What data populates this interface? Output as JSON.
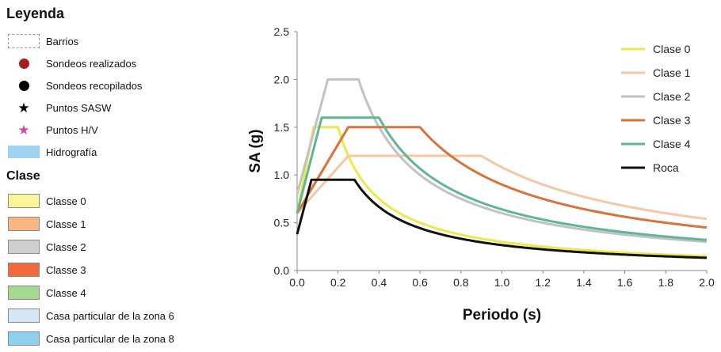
{
  "legend": {
    "title": "Leyenda",
    "items": [
      {
        "label": "Barrios",
        "symbol": "dashed-box-icon"
      },
      {
        "label": "Sondeos realizados",
        "symbol": "dot-icon",
        "color": "#a51c23"
      },
      {
        "label": "Sondeos recopilados",
        "symbol": "dot-icon",
        "color": "#000000"
      },
      {
        "label": "Puntos SASW",
        "symbol": "star-icon",
        "color": "#000000"
      },
      {
        "label": "Puntos H/V",
        "symbol": "star-icon",
        "color": "#d048b0"
      },
      {
        "label": "Hidrografía",
        "symbol": "hydro-icon",
        "color": "#9fd4ef"
      }
    ],
    "clase_title": "Clase",
    "clases": [
      {
        "label": "Classe 0",
        "color": "#fbf49a"
      },
      {
        "label": "Classe 1",
        "color": "#f9b680"
      },
      {
        "label": "Classe 2",
        "color": "#cfcfcf"
      },
      {
        "label": "Classe 3",
        "color": "#f26a3c"
      },
      {
        "label": "Classe 4",
        "color": "#a6d990"
      },
      {
        "label": "Casa particular de la zona 6",
        "color": "#d6e8f6"
      },
      {
        "label": "Casa particular de la zona 8",
        "color": "#8ed0f0"
      }
    ]
  },
  "chart_data": {
    "type": "line",
    "xlabel": "Periodo (s)",
    "ylabel": "SA (g)",
    "xlim": [
      0,
      2.0
    ],
    "ylim": [
      0,
      2.5
    ],
    "xticks": [
      "0.0",
      "0.2",
      "0.4",
      "0.6",
      "0.8",
      "1.0",
      "1.2",
      "1.4",
      "1.6",
      "1.8",
      "2.0"
    ],
    "yticks": [
      "0.0",
      "0.5",
      "1.0",
      "1.5",
      "2.0",
      "2.5"
    ],
    "grid": false,
    "legend_position": "top-right",
    "series": [
      {
        "name": "Clase 0",
        "color": "#ecea4a",
        "pga": 0.6,
        "t0": 0.08,
        "tc": 0.2,
        "sa": 1.5,
        "points": [
          [
            0,
            0.6
          ],
          [
            0.08,
            1.5
          ],
          [
            0.2,
            1.5
          ],
          [
            0.28,
            0.95
          ],
          [
            0.4,
            0.68
          ],
          [
            0.6,
            0.45
          ],
          [
            0.8,
            0.34
          ],
          [
            1.0,
            0.27
          ],
          [
            1.2,
            0.23
          ],
          [
            1.4,
            0.19
          ],
          [
            1.6,
            0.17
          ],
          [
            1.8,
            0.15
          ],
          [
            2.0,
            0.14
          ]
        ]
      },
      {
        "name": "Clase 1",
        "color": "#f5c7a6",
        "pga": 0.6,
        "t0": 0.25,
        "tc": 0.9,
        "sa": 1.2,
        "points": [
          [
            0,
            0.6
          ],
          [
            0.25,
            1.2
          ],
          [
            0.9,
            1.2
          ],
          [
            1.0,
            1.08
          ],
          [
            1.2,
            0.9
          ],
          [
            1.4,
            0.77
          ],
          [
            1.6,
            0.68
          ],
          [
            1.8,
            0.6
          ],
          [
            2.0,
            0.54
          ]
        ]
      },
      {
        "name": "Clase 2",
        "color": "#c2c2c2",
        "pga": 0.8,
        "t0": 0.15,
        "tc": 0.3,
        "sa": 2.0,
        "points": [
          [
            0,
            0.8
          ],
          [
            0.15,
            2.0
          ],
          [
            0.3,
            2.0
          ],
          [
            0.4,
            1.5
          ],
          [
            0.6,
            1.0
          ],
          [
            0.8,
            0.75
          ],
          [
            1.0,
            0.6
          ],
          [
            1.2,
            0.5
          ],
          [
            1.4,
            0.43
          ],
          [
            1.6,
            0.38
          ],
          [
            1.8,
            0.33
          ],
          [
            2.0,
            0.3
          ]
        ]
      },
      {
        "name": "Clase 3",
        "color": "#d9733a",
        "pga": 0.6,
        "t0": 0.25,
        "tc": 0.6,
        "sa": 1.5,
        "points": [
          [
            0,
            0.6
          ],
          [
            0.25,
            1.5
          ],
          [
            0.6,
            1.5
          ],
          [
            0.8,
            1.13
          ],
          [
            1.0,
            0.9
          ],
          [
            1.2,
            0.75
          ],
          [
            1.4,
            0.64
          ],
          [
            1.6,
            0.56
          ],
          [
            1.8,
            0.5
          ],
          [
            2.0,
            0.45
          ]
        ]
      },
      {
        "name": "Clase 4",
        "color": "#5fb693",
        "pga": 0.6,
        "t0": 0.12,
        "tc": 0.4,
        "sa": 1.6,
        "points": [
          [
            0,
            0.6
          ],
          [
            0.12,
            1.6
          ],
          [
            0.4,
            1.6
          ],
          [
            0.6,
            1.07
          ],
          [
            0.8,
            0.8
          ],
          [
            1.0,
            0.64
          ],
          [
            1.2,
            0.53
          ],
          [
            1.4,
            0.46
          ],
          [
            1.6,
            0.4
          ],
          [
            1.8,
            0.36
          ],
          [
            2.0,
            0.32
          ]
        ]
      },
      {
        "name": "Roca",
        "color": "#111111",
        "pga": 0.38,
        "t0": 0.07,
        "tc": 0.28,
        "sa": 0.95,
        "points": [
          [
            0,
            0.38
          ],
          [
            0.07,
            0.95
          ],
          [
            0.28,
            0.95
          ],
          [
            0.4,
            0.67
          ],
          [
            0.6,
            0.44
          ],
          [
            0.8,
            0.33
          ],
          [
            1.0,
            0.27
          ],
          [
            1.2,
            0.22
          ],
          [
            1.4,
            0.19
          ],
          [
            1.6,
            0.17
          ],
          [
            1.8,
            0.15
          ],
          [
            2.0,
            0.13
          ]
        ]
      }
    ]
  }
}
